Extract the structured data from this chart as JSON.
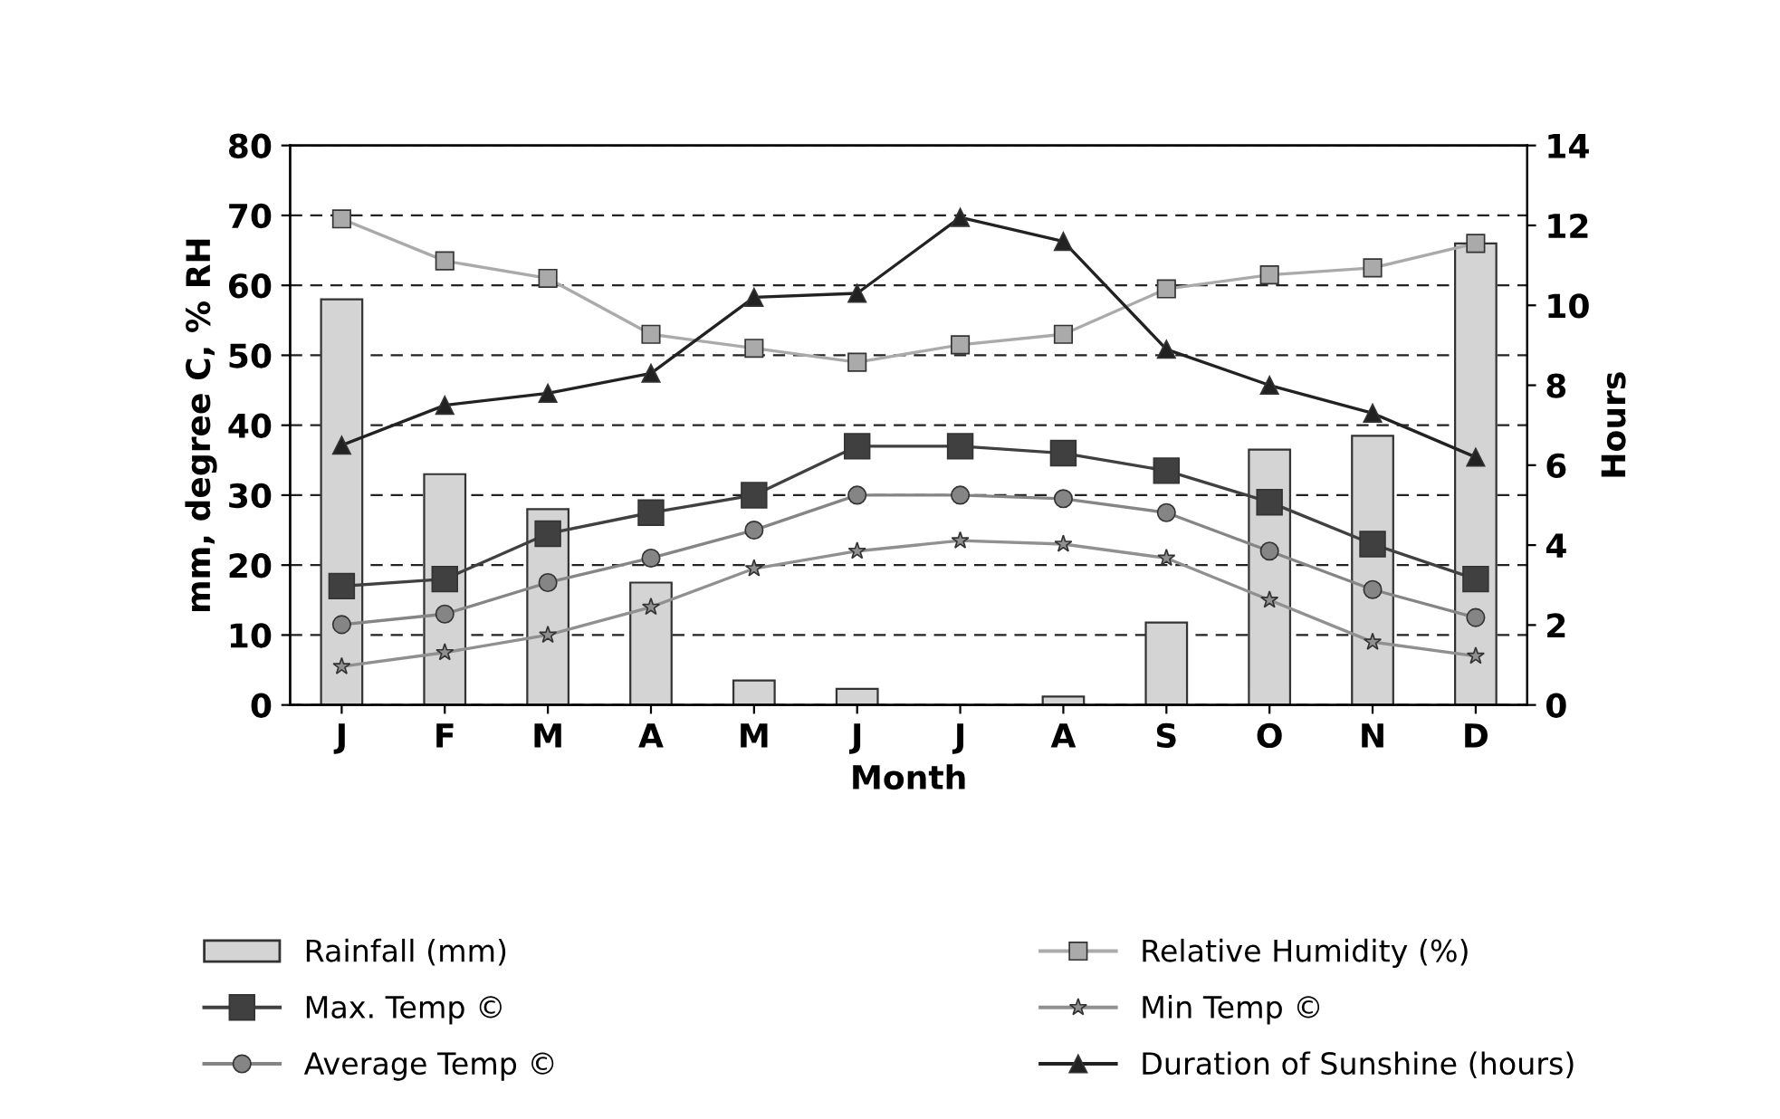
{
  "chart_data": {
    "type": "bar",
    "xlabel": "Month",
    "ylabel": "mm, degree C, % RH",
    "y2label": "Hours",
    "categories": [
      "J",
      "F",
      "M",
      "A",
      "M",
      "J",
      "J",
      "A",
      "S",
      "O",
      "N",
      "D"
    ],
    "series": [
      {
        "name": "Rainfall (mm)",
        "color": "#d4d4d4",
        "values": [
          58,
          33,
          28,
          17.5,
          3.5,
          2.3,
          null,
          1.2,
          11.8,
          36.5,
          38.5,
          66
        ]
      },
      {
        "name": "Max. Temp ©",
        "type": "line",
        "marker": "square",
        "color": "#404040",
        "values": [
          17,
          18,
          24.5,
          27.5,
          30,
          37,
          37,
          36,
          33.5,
          29,
          23,
          18
        ]
      },
      {
        "name": "Average Temp ©",
        "type": "line",
        "marker": "circle",
        "color": "#858585",
        "values": [
          11.5,
          13,
          17.5,
          21,
          25,
          30,
          30,
          29.5,
          27.5,
          22,
          16.5,
          12.5
        ]
      },
      {
        "name": "Relative Humidity (%)",
        "type": "line",
        "marker": "square",
        "color": "#aaaaaa",
        "values": [
          69.5,
          63.5,
          61,
          53,
          51,
          49,
          51.5,
          53,
          59.5,
          61.5,
          62.5,
          66
        ]
      },
      {
        "name": "Min Temp ©",
        "type": "line",
        "marker": "star",
        "color": "#909090",
        "values": [
          5.5,
          7.5,
          10,
          14,
          19.5,
          22,
          23.5,
          23,
          21,
          15,
          9,
          7
        ]
      },
      {
        "name": "Duration of Sunshine (hours)",
        "type": "line",
        "marker": "triangle",
        "axis": "y2",
        "color": "#222222",
        "values": [
          6.5,
          7.5,
          7.8,
          8.3,
          10.2,
          10.3,
          12.2,
          11.6,
          8.9,
          8.0,
          7.3,
          6.2
        ]
      }
    ],
    "ylim": [
      0,
      80
    ],
    "yticks": [
      0,
      10,
      20,
      30,
      40,
      50,
      60,
      70,
      80
    ],
    "y2lim": [
      0,
      14
    ],
    "y2ticks": [
      0,
      2,
      4,
      6,
      8,
      10,
      12,
      14
    ],
    "grid": "y",
    "legend": "bottom"
  }
}
